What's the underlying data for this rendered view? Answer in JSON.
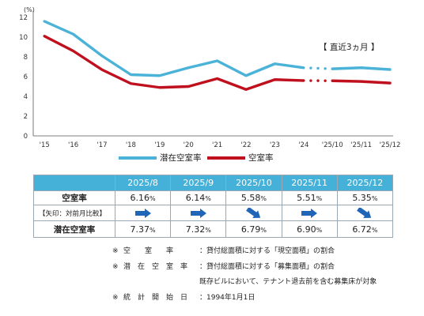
{
  "chart_data": {
    "type": "line",
    "y_unit": "(%)",
    "ylim": [
      0,
      12
    ],
    "yticks": [
      "0",
      "2",
      "4",
      "6",
      "8",
      "10",
      "12"
    ],
    "x": [
      "'15",
      "'16",
      "'17",
      "'18",
      "'19",
      "'20",
      "'21",
      "'22",
      "'23",
      "'24",
      "'25/10",
      "'25/11",
      "'25/12"
    ],
    "recent_label": "【 直近3ヵ月 】",
    "series": [
      {
        "name": "潜在空室率",
        "color": "#4bb3d8",
        "values": [
          11.6,
          10.3,
          8.1,
          6.2,
          6.1,
          6.9,
          7.6,
          6.1,
          7.3,
          6.9,
          6.79,
          6.9,
          6.72
        ]
      },
      {
        "name": "空室率",
        "color": "#c0101e",
        "values": [
          10.1,
          8.6,
          6.7,
          5.3,
          4.9,
          5.0,
          5.8,
          4.7,
          5.7,
          5.6,
          5.58,
          5.51,
          5.35
        ]
      }
    ]
  },
  "table": {
    "months": [
      "2025/8",
      "2025/9",
      "2025/10",
      "2025/11",
      "2025/12"
    ],
    "vacancy": {
      "label": "空室率",
      "values": [
        "6.16",
        "6.14",
        "5.58",
        "5.51",
        "5.35"
      ],
      "unit": "%"
    },
    "arrow_label": "【矢印：対前月比較】",
    "arrows": [
      "right",
      "right",
      "down-right",
      "right",
      "down-right"
    ],
    "potential": {
      "label": "潜在空室率",
      "values": [
        "7.37",
        "7.32",
        "6.79",
        "6.90",
        "6.72"
      ],
      "unit": "%"
    },
    "arrow_color": "#1f66b8"
  },
  "notes": {
    "mark": "※",
    "line1_term": "空　　室　　率",
    "line1_text": "：貸付総面積に対する「現空面積」の割合",
    "line2_term": "潜　在　空　室　率",
    "line2_text": "：貸付総面積に対する「募集面積」の割合",
    "line3_text": "既存ビルにおいて、テナント退去前を含む募集床が対象",
    "line4_term": "統　計　開　始　日",
    "line4_text": "：1994年1月1日"
  }
}
